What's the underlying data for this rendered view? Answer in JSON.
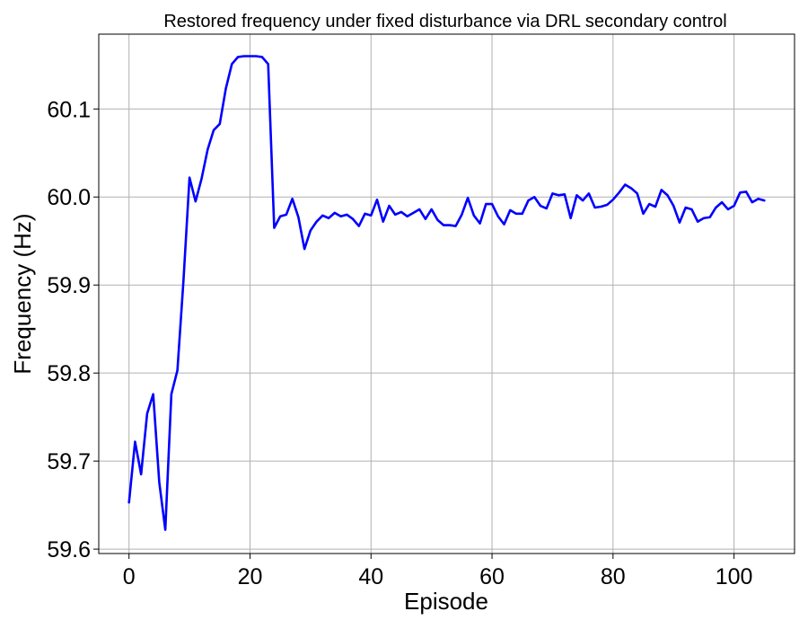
{
  "colors": {
    "series": "#0000ff",
    "grid": "#b0b0b0",
    "background": "#ffffff"
  },
  "chart_data": {
    "type": "line",
    "title": "Restored frequency under fixed disturbance via DRL secondary control",
    "xlabel": "Episode",
    "ylabel": "Frequency (Hz)",
    "xlim": [
      -5,
      110
    ],
    "ylim": [
      59.595,
      60.185
    ],
    "xticks": [
      0,
      20,
      40,
      60,
      80,
      100
    ],
    "yticks": [
      59.6,
      59.7,
      59.8,
      59.9,
      60.0,
      60.1
    ],
    "xtick_labels": [
      "0",
      "20",
      "40",
      "60",
      "80",
      "100"
    ],
    "ytick_labels": [
      "59.6",
      "59.7",
      "59.8",
      "59.9",
      "60.0",
      "60.1"
    ],
    "grid": true,
    "series": [
      {
        "color": "#0000ff",
        "x": [
          0,
          1,
          2,
          3,
          4,
          5,
          6,
          7,
          8,
          9,
          10,
          11,
          12,
          13,
          14,
          15,
          16,
          17,
          18,
          19,
          20,
          21,
          22,
          23,
          24,
          25,
          26,
          27,
          28,
          29,
          30,
          31,
          32,
          33,
          34,
          35,
          36,
          37,
          38,
          39,
          40,
          41,
          42,
          43,
          44,
          45,
          46,
          47,
          48,
          49,
          50,
          51,
          52,
          53,
          54,
          55,
          56,
          57,
          58,
          59,
          60,
          61,
          62,
          63,
          64,
          65,
          66,
          67,
          68,
          69,
          70,
          71,
          72,
          73,
          74,
          75,
          76,
          77,
          78,
          79,
          80,
          81,
          82,
          83,
          84,
          85,
          86,
          87,
          88,
          89,
          90,
          91,
          92,
          93,
          94,
          95,
          96,
          97,
          98,
          99,
          100,
          101,
          102,
          103,
          104,
          105
        ],
        "values": [
          59.653,
          59.722,
          59.685,
          59.754,
          59.776,
          59.676,
          59.622,
          59.776,
          59.803,
          59.905,
          60.022,
          59.995,
          60.021,
          60.054,
          60.076,
          60.083,
          60.123,
          60.151,
          60.159,
          60.16,
          60.16,
          60.16,
          60.159,
          60.151,
          59.965,
          59.978,
          59.98,
          59.998,
          59.977,
          59.941,
          59.962,
          59.972,
          59.979,
          59.976,
          59.982,
          59.978,
          59.98,
          59.975,
          59.967,
          59.981,
          59.979,
          59.997,
          59.972,
          59.99,
          59.98,
          59.983,
          59.978,
          59.982,
          59.986,
          59.975,
          59.986,
          59.974,
          59.968,
          59.968,
          59.967,
          59.98,
          59.999,
          59.979,
          59.97,
          59.992,
          59.992,
          59.978,
          59.969,
          59.985,
          59.981,
          59.981,
          59.996,
          60.0,
          59.99,
          59.987,
          60.004,
          60.002,
          60.003,
          59.976,
          60.002,
          59.996,
          60.004,
          59.988,
          59.989,
          59.991,
          59.997,
          60.005,
          60.014,
          60.01,
          60.004,
          59.981,
          59.992,
          59.989,
          60.008,
          60.002,
          59.99,
          59.971,
          59.988,
          59.986,
          59.972,
          59.976,
          59.977,
          59.988,
          59.994,
          59.986,
          59.99,
          60.005,
          60.006,
          59.994,
          59.998,
          59.996
        ]
      }
    ]
  }
}
